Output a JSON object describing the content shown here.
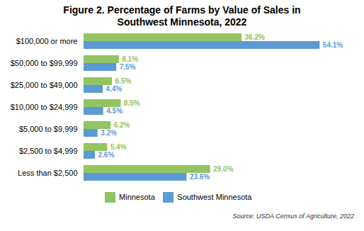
{
  "chart_data": {
    "type": "bar",
    "orientation": "horizontal",
    "title": "Figure 2. Percentage of Farms by Value of Sales in\nSouthwest Minnesota, 2022",
    "caption": "Source: USDA Census of Agriculture, 2022",
    "categories": [
      "$100,000 or more",
      "$50,000 to $99,999",
      "$25,000 to $49,000",
      "$10,000 to $24,999",
      "$5,000 to $9,999",
      "$2,500 to $4,999",
      "Less than $2,500"
    ],
    "series": [
      {
        "name": "Minnesota",
        "color": "#92C461",
        "values": [
          36.2,
          8.1,
          6.5,
          8.5,
          6.2,
          5.4,
          29.0
        ],
        "value_labels": [
          "36.2%",
          "8.1%",
          "6.5%",
          "8.5%",
          "6.2%",
          "5.4%",
          "29.0%"
        ]
      },
      {
        "name": "Southwest Minnesota",
        "color": "#5B9BD5",
        "values": [
          54.1,
          7.5,
          4.4,
          4.5,
          3.2,
          2.6,
          23.6
        ],
        "value_labels": [
          "54.1%",
          "7.5%",
          "4.4%",
          "4.5%",
          "3.2%",
          "2.6%",
          "23.6%"
        ]
      }
    ],
    "xlim": [
      0,
      62
    ],
    "data_labels": true,
    "tick_labels": "y",
    "grid": false,
    "legend": "bottom"
  }
}
